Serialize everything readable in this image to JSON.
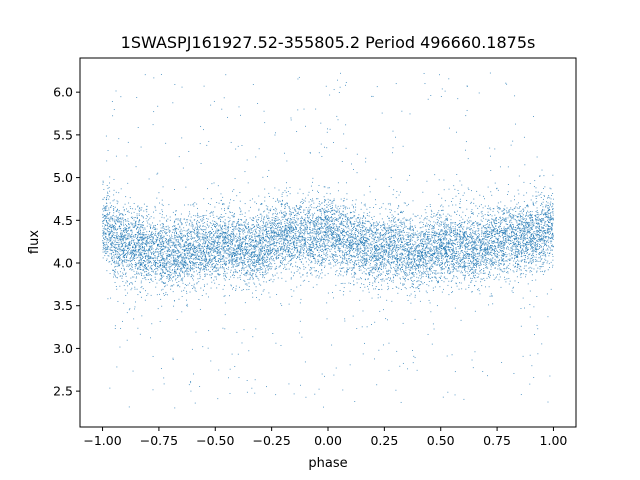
{
  "chart_data": {
    "type": "scatter",
    "title": "1SWASPJ161927.52-355805.2 Period 496660.1875s",
    "xlabel": "phase",
    "ylabel": "flux",
    "xlim": [
      -1.1,
      1.1
    ],
    "ylim": [
      2.08,
      6.4
    ],
    "xticks": [
      -1.0,
      -0.75,
      -0.5,
      -0.25,
      0.0,
      0.25,
      0.5,
      0.75,
      1.0
    ],
    "xtick_labels": [
      "−1.00",
      "−0.75",
      "−0.50",
      "−0.25",
      "0.00",
      "0.25",
      "0.50",
      "0.75",
      "1.00"
    ],
    "yticks": [
      2.5,
      3.0,
      3.5,
      4.0,
      4.5,
      5.0,
      5.5,
      6.0
    ],
    "ytick_labels": [
      "2.5",
      "3.0",
      "3.5",
      "4.0",
      "4.5",
      "5.0",
      "5.5",
      "6.0"
    ],
    "grid": false,
    "marker_color": "#1f77b4",
    "series": [
      {
        "x_range": [
          -1.0,
          1.0
        ],
        "approx_point_count": 12000,
        "flux_profile_over_phase": {
          "phase": [
            -1.0,
            -0.95,
            -0.9,
            -0.85,
            -0.8,
            -0.75,
            -0.7,
            -0.65,
            -0.6,
            -0.55,
            -0.5,
            -0.45,
            -0.4,
            -0.35,
            -0.3,
            -0.25,
            -0.2,
            -0.15,
            -0.1,
            -0.05,
            0.0,
            0.05,
            0.1,
            0.15,
            0.2,
            0.25,
            0.3,
            0.35,
            0.4,
            0.45,
            0.5,
            0.55,
            0.6,
            0.65,
            0.7,
            0.75,
            0.8,
            0.85,
            0.9,
            0.95,
            1.0
          ],
          "median_flux": [
            4.45,
            4.3,
            4.2,
            4.2,
            4.15,
            4.15,
            4.1,
            4.1,
            4.15,
            4.15,
            4.2,
            4.2,
            4.2,
            4.15,
            4.2,
            4.25,
            4.3,
            4.3,
            4.3,
            4.3,
            4.4,
            4.3,
            4.25,
            4.2,
            4.15,
            4.15,
            4.2,
            4.1,
            4.1,
            4.15,
            4.2,
            4.2,
            4.2,
            4.15,
            4.2,
            4.25,
            4.3,
            4.3,
            4.3,
            4.35,
            4.45
          ],
          "typical_spread": 0.3,
          "max_flux_observed": 6.25,
          "min_flux_observed": 2.3
        }
      }
    ]
  }
}
